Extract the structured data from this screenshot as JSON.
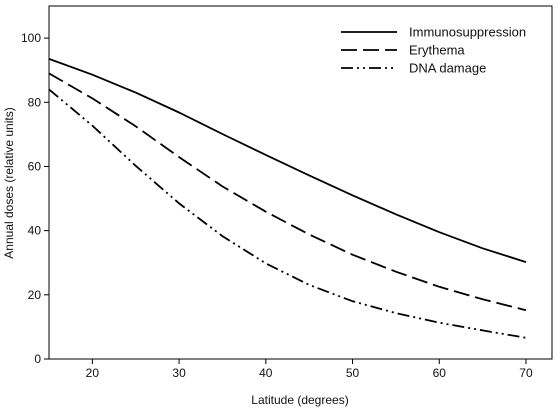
{
  "chart_data": {
    "type": "line",
    "title": "",
    "xlabel": "Latitude (degrees)",
    "ylabel": "Annual doses (relative units)",
    "xlim": [
      15,
      73
    ],
    "ylim": [
      0,
      110
    ],
    "x_ticks": [
      20,
      30,
      40,
      50,
      60,
      70
    ],
    "y_ticks": [
      0,
      20,
      40,
      60,
      80,
      100
    ],
    "x": [
      15,
      20,
      25,
      30,
      35,
      40,
      45,
      50,
      55,
      60,
      65,
      70
    ],
    "series": [
      {
        "name": "Immunosuppression",
        "line_style": "solid",
        "values": [
          93.5,
          88.6,
          83.0,
          76.8,
          70.1,
          63.6,
          57.2,
          51.0,
          45.1,
          39.5,
          34.5,
          30.2
        ]
      },
      {
        "name": "Erythema",
        "line_style": "dashed",
        "values": [
          89.0,
          81.2,
          72.5,
          62.9,
          53.8,
          45.9,
          38.8,
          32.5,
          27.2,
          22.5,
          18.6,
          15.2
        ]
      },
      {
        "name": "DNA damage",
        "line_style": "dash-dot-dot",
        "values": [
          84.0,
          72.7,
          60.2,
          48.5,
          38.3,
          29.8,
          23.1,
          18.0,
          14.3,
          11.3,
          8.9,
          6.6
        ]
      }
    ],
    "grid": false,
    "legend_position": "top-right",
    "colors": {
      "line": "#000000",
      "axis": "#000000",
      "background": "#ffffff"
    }
  }
}
